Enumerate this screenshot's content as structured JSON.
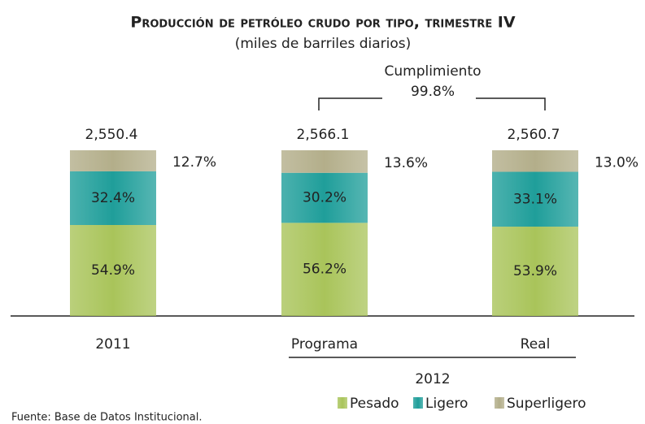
{
  "chart_data": {
    "type": "stacked_bar",
    "title": "Producción de petróleo crudo por tipo, trimestre IV",
    "subtitle": "(miles de barriles diarios)",
    "categories": [
      "2011",
      "Programa",
      "Real"
    ],
    "group_label": "2012",
    "ylim": [
      0,
      100
    ],
    "series": [
      {
        "name": "Pesado",
        "color": "#a9c45a",
        "values": [
          54.9,
          56.2,
          53.9
        ],
        "value_labels": [
          "54.9%",
          "56.2%",
          "53.9%"
        ]
      },
      {
        "name": "Ligero",
        "color": "#1f9e9a",
        "values": [
          32.4,
          30.2,
          33.1
        ],
        "value_labels": [
          "32.4%",
          "30.2%",
          "33.1%"
        ]
      },
      {
        "name": "Superligero",
        "color": "#b3ae8a",
        "values": [
          12.7,
          13.6,
          13.0
        ],
        "value_labels": [
          "12.7%",
          "13.6%",
          "13.0%"
        ]
      }
    ],
    "totals": [
      {
        "value": 2550.4,
        "label": "2,550.4"
      },
      {
        "value": 2566.1,
        "label": "2,566.1"
      },
      {
        "value": 2560.7,
        "label": "2,560.7"
      }
    ],
    "annotation": {
      "text": "Cumplimiento",
      "value": 99.8,
      "label": "99.8%"
    },
    "source": "Fuente: Base de Datos Institucional."
  }
}
